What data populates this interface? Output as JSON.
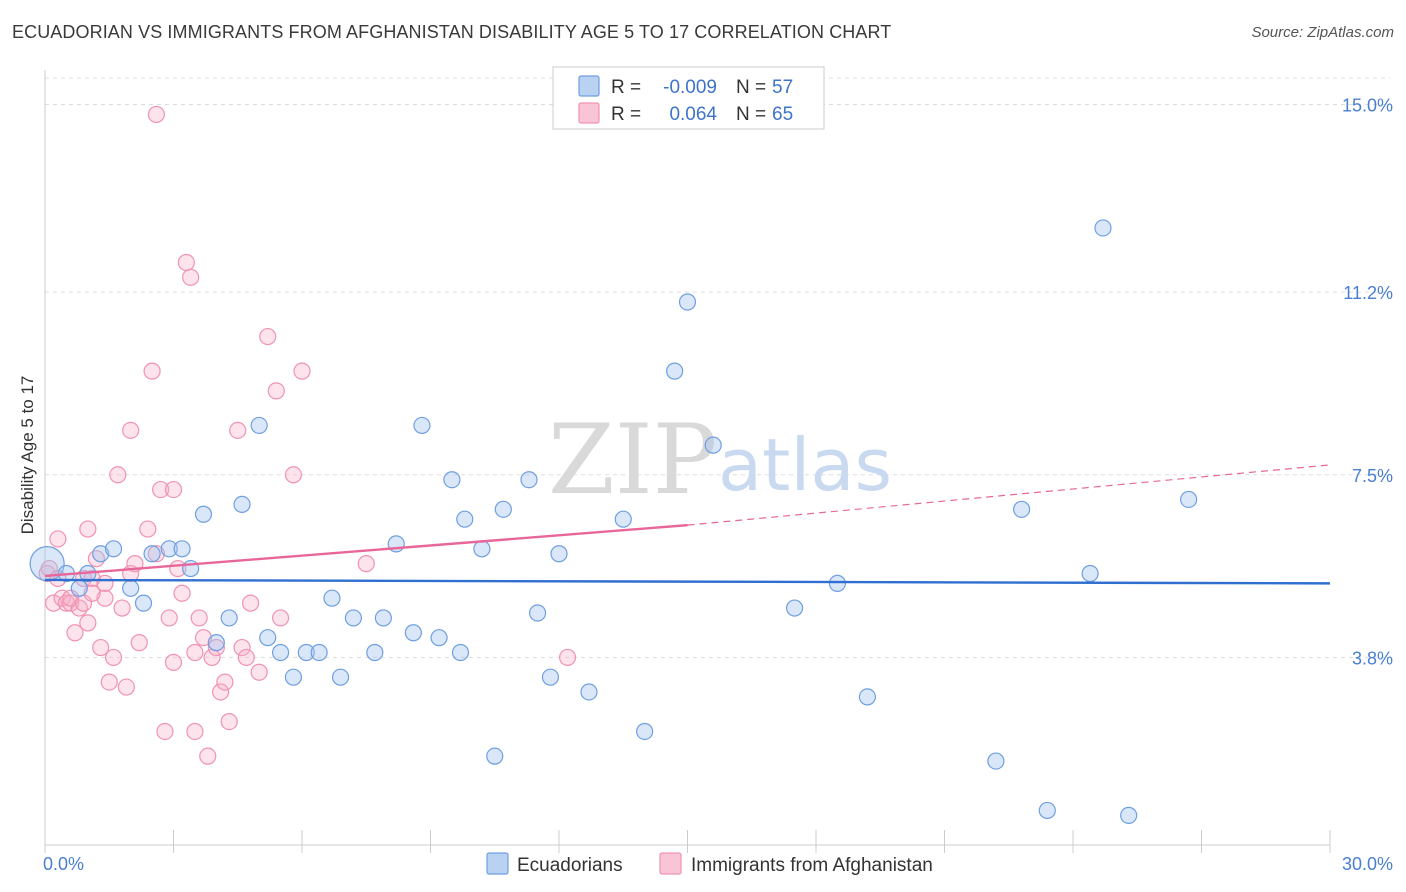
{
  "title": "ECUADORIAN VS IMMIGRANTS FROM AFGHANISTAN DISABILITY AGE 5 TO 17 CORRELATION CHART",
  "source": "Source: ZipAtlas.com",
  "watermark": {
    "part1": "ZIP",
    "part2": "atlas"
  },
  "legend": {
    "r_label": "R =",
    "n_label": "N =",
    "rows": [
      {
        "r": "-0.009",
        "n": "57"
      },
      {
        "r": "0.064",
        "n": "65"
      }
    ]
  },
  "chart_data": {
    "type": "scatter",
    "title": "ECUADORIAN VS IMMIGRANTS FROM AFGHANISTAN DISABILITY AGE 5 TO 17 CORRELATION CHART",
    "ylabel": "Disability Age 5 to 17",
    "xlabel": "",
    "xlim": [
      0,
      30
    ],
    "ylim": [
      0,
      15.7
    ],
    "x_tick_labels": [
      "0.0%",
      "30.0%"
    ],
    "y_ticks": [
      {
        "value": 3.8,
        "label": "3.8%"
      },
      {
        "value": 7.5,
        "label": "7.5%"
      },
      {
        "value": 11.2,
        "label": "11.2%"
      },
      {
        "value": 15.0,
        "label": "15.0%"
      }
    ],
    "x_minor_ticks": [
      0,
      3,
      6,
      9,
      12,
      15,
      18,
      21,
      24,
      27,
      30
    ],
    "colors": {
      "ecuadorians": "#6f9fe0",
      "afghanistan": "#f093b3",
      "ecu_line": "#2f6fd0",
      "afg_line": "#e8679a"
    },
    "series": [
      {
        "name": "Ecuadorians",
        "points": [
          [
            0.05,
            5.7
          ],
          [
            0.5,
            5.5
          ],
          [
            0.8,
            5.2
          ],
          [
            1.0,
            5.5
          ],
          [
            1.3,
            5.9
          ],
          [
            1.6,
            6.0
          ],
          [
            2.0,
            5.2
          ],
          [
            2.3,
            4.9
          ],
          [
            2.5,
            5.9
          ],
          [
            2.9,
            6.0
          ],
          [
            3.2,
            6.0
          ],
          [
            3.4,
            5.6
          ],
          [
            3.7,
            6.7
          ],
          [
            4.0,
            4.1
          ],
          [
            4.3,
            4.6
          ],
          [
            4.6,
            6.9
          ],
          [
            5.0,
            8.5
          ],
          [
            5.2,
            4.2
          ],
          [
            5.5,
            3.9
          ],
          [
            5.8,
            3.4
          ],
          [
            6.1,
            3.9
          ],
          [
            6.4,
            3.9
          ],
          [
            6.7,
            5.0
          ],
          [
            6.9,
            3.4
          ],
          [
            7.2,
            4.6
          ],
          [
            7.7,
            3.9
          ],
          [
            7.9,
            4.6
          ],
          [
            8.2,
            6.1
          ],
          [
            8.6,
            4.3
          ],
          [
            8.8,
            8.5
          ],
          [
            9.2,
            4.2
          ],
          [
            9.5,
            7.4
          ],
          [
            9.7,
            3.9
          ],
          [
            9.8,
            6.6
          ],
          [
            10.2,
            6.0
          ],
          [
            10.5,
            1.8
          ],
          [
            10.7,
            6.8
          ],
          [
            11.3,
            7.4
          ],
          [
            11.8,
            3.4
          ],
          [
            11.5,
            4.7
          ],
          [
            12.0,
            5.9
          ],
          [
            12.7,
            3.1
          ],
          [
            13.5,
            6.6
          ],
          [
            14.0,
            2.3
          ],
          [
            14.7,
            9.6
          ],
          [
            15.0,
            11.0
          ],
          [
            15.6,
            8.1
          ],
          [
            17.5,
            4.8
          ],
          [
            18.5,
            5.3
          ],
          [
            19.2,
            3.0
          ],
          [
            22.2,
            1.7
          ],
          [
            22.8,
            6.8
          ],
          [
            23.4,
            0.7
          ],
          [
            24.4,
            5.5
          ],
          [
            24.7,
            12.5
          ],
          [
            25.3,
            0.6
          ],
          [
            26.7,
            7.0
          ]
        ]
      },
      {
        "name": "Immigrants from Afghanistan",
        "points": [
          [
            0.05,
            5.5
          ],
          [
            0.1,
            5.6
          ],
          [
            0.2,
            4.9
          ],
          [
            0.3,
            6.2
          ],
          [
            0.4,
            5.0
          ],
          [
            0.5,
            4.9
          ],
          [
            0.6,
            4.9
          ],
          [
            0.7,
            4.3
          ],
          [
            0.8,
            4.8
          ],
          [
            0.9,
            5.4
          ],
          [
            1.0,
            4.5
          ],
          [
            1.0,
            6.4
          ],
          [
            1.1,
            5.4
          ],
          [
            1.2,
            5.8
          ],
          [
            1.3,
            4.0
          ],
          [
            1.4,
            5.3
          ],
          [
            1.4,
            5.0
          ],
          [
            1.5,
            3.3
          ],
          [
            1.6,
            3.8
          ],
          [
            1.7,
            7.5
          ],
          [
            1.8,
            4.8
          ],
          [
            1.9,
            3.2
          ],
          [
            2.0,
            5.5
          ],
          [
            2.0,
            8.4
          ],
          [
            2.2,
            4.1
          ],
          [
            2.4,
            6.4
          ],
          [
            2.5,
            9.6
          ],
          [
            2.6,
            5.9
          ],
          [
            2.7,
            7.2
          ],
          [
            2.8,
            2.3
          ],
          [
            2.9,
            4.6
          ],
          [
            3.0,
            7.2
          ],
          [
            3.1,
            5.6
          ],
          [
            3.2,
            5.1
          ],
          [
            3.3,
            11.8
          ],
          [
            3.4,
            11.5
          ],
          [
            3.5,
            3.9
          ],
          [
            3.5,
            2.3
          ],
          [
            3.6,
            4.6
          ],
          [
            3.7,
            4.2
          ],
          [
            3.8,
            1.8
          ],
          [
            3.9,
            3.8
          ],
          [
            4.0,
            4.0
          ],
          [
            4.1,
            3.1
          ],
          [
            4.2,
            3.3
          ],
          [
            4.3,
            2.5
          ],
          [
            4.5,
            8.4
          ],
          [
            4.6,
            4.0
          ],
          [
            4.7,
            3.8
          ],
          [
            4.8,
            4.9
          ],
          [
            5.0,
            3.5
          ],
          [
            5.2,
            10.3
          ],
          [
            5.4,
            9.2
          ],
          [
            5.5,
            4.6
          ],
          [
            5.8,
            7.5
          ],
          [
            6.0,
            9.6
          ],
          [
            7.5,
            5.7
          ],
          [
            12.2,
            3.8
          ],
          [
            2.6,
            14.8
          ],
          [
            0.3,
            5.4
          ],
          [
            0.6,
            5.0
          ],
          [
            0.9,
            4.9
          ],
          [
            1.1,
            5.1
          ],
          [
            2.1,
            5.7
          ],
          [
            3.0,
            3.7
          ]
        ]
      }
    ],
    "trend_lines": [
      {
        "series": "Ecuadorians",
        "x": [
          0,
          30
        ],
        "y": [
          5.37,
          5.3
        ],
        "style": "solid"
      },
      {
        "series": "Immigrants from Afghanistan",
        "x": [
          0,
          15
        ],
        "y": [
          5.45,
          6.48
        ],
        "style": "solid"
      },
      {
        "series": "Immigrants from Afghanistan",
        "x": [
          15,
          30
        ],
        "y": [
          6.48,
          7.7
        ],
        "style": "dashed"
      }
    ],
    "bottom_legend": [
      "Ecuadorians",
      "Immigrants from Afghanistan"
    ]
  }
}
